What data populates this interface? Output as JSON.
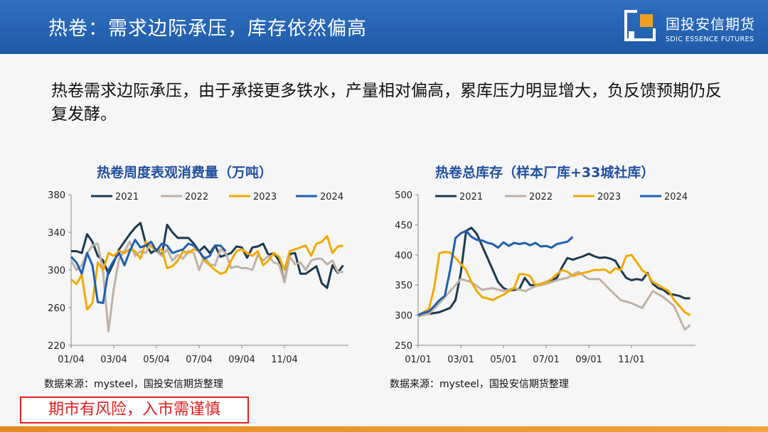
{
  "header": {
    "title": "热卷：需求边际承压，库存依然偏高",
    "logo_cn": "国投安信期货",
    "logo_en": "SDIC ESSENCE FUTURES",
    "bar_color": "#2060b0"
  },
  "body_text": "热卷需求边际承压，由于承接更多铁水，产量相对偏高，累库压力明显增大，负反馈预期仍反复发酵。",
  "risk_notice": "期市有风险，入市需谨慎",
  "chart_data": [
    {
      "type": "line",
      "title": "热卷周度表观消费量（万吨）",
      "source": "数据来源：mysteel，国投安信期货整理",
      "xlabel": "",
      "ylabel": "",
      "x_ticks": [
        "01/04",
        "03/04",
        "05/04",
        "07/04",
        "09/04",
        "11/04"
      ],
      "ylim": [
        220,
        380
      ],
      "y_ticks": [
        220,
        260,
        300,
        340,
        380
      ],
      "xlim": [
        0,
        52
      ],
      "grid": false,
      "legend": "top",
      "series": [
        {
          "name": "2021",
          "color": "#1b3a4f",
          "x": [
            0,
            1,
            2,
            3,
            4,
            5,
            6,
            7,
            8,
            9,
            10,
            11,
            12,
            13,
            14,
            15,
            16,
            17,
            18,
            19,
            20,
            21,
            22,
            23,
            24,
            25,
            26,
            27,
            28,
            29,
            30,
            31,
            32,
            33,
            34,
            35,
            36,
            37,
            38,
            39,
            40,
            41,
            42,
            43,
            44,
            45,
            46,
            47,
            48,
            49,
            50,
            51
          ],
          "values": [
            320,
            320,
            318,
            338,
            330,
            315,
            310,
            296,
            308,
            322,
            330,
            338,
            345,
            350,
            328,
            318,
            322,
            315,
            348,
            340,
            334,
            334,
            334,
            328,
            320,
            325,
            318,
            326,
            314,
            316,
            318,
            325,
            324,
            313,
            324,
            325,
            328,
            316,
            318,
            310,
            287,
            317,
            318,
            296,
            296,
            300,
            304,
            286,
            281,
            305,
            297,
            305
          ]
        },
        {
          "name": "2022",
          "color": "#bfb2a5",
          "x": [
            0,
            1,
            2,
            3,
            4,
            5,
            6,
            7,
            8,
            9,
            10,
            11,
            12,
            13,
            14,
            15,
            16,
            17,
            18,
            19,
            20,
            21,
            22,
            23,
            24,
            25,
            26,
            27,
            28,
            29,
            30,
            31,
            32,
            33,
            34,
            35,
            36,
            37,
            38,
            39,
            40,
            41,
            42,
            43,
            44,
            45,
            46,
            47,
            48,
            49,
            50,
            51
          ],
          "values": [
            310,
            300,
            305,
            318,
            326,
            328,
            298,
            235,
            280,
            312,
            320,
            330,
            315,
            320,
            318,
            330,
            320,
            315,
            322,
            310,
            316,
            312,
            320,
            318,
            300,
            314,
            306,
            305,
            322,
            318,
            302,
            304,
            302,
            302,
            300,
            316,
            310,
            315,
            308,
            306,
            287,
            314,
            306,
            308,
            300,
            310,
            312,
            312,
            306,
            310,
            298,
            298
          ]
        },
        {
          "name": "2023",
          "color": "#f2a900",
          "x": [
            0,
            1,
            2,
            3,
            4,
            5,
            6,
            7,
            8,
            9,
            10,
            11,
            12,
            13,
            14,
            15,
            16,
            17,
            18,
            19,
            20,
            21,
            22,
            23,
            24,
            25,
            26,
            27,
            28,
            29,
            30,
            31,
            32,
            33,
            34,
            35,
            36,
            37,
            38,
            39,
            40,
            41,
            42,
            43,
            44,
            45,
            46,
            47,
            48,
            49,
            50,
            51
          ],
          "values": [
            290,
            285,
            295,
            258,
            265,
            308,
            300,
            318,
            315,
            320,
            318,
            322,
            320,
            312,
            330,
            325,
            320,
            322,
            302,
            304,
            310,
            320,
            318,
            322,
            320,
            310,
            305,
            300,
            296,
            298,
            310,
            320,
            322,
            318,
            315,
            320,
            305,
            310,
            318,
            314,
            300,
            320,
            322,
            324,
            326,
            315,
            328,
            330,
            336,
            318,
            325,
            326
          ]
        },
        {
          "name": "2024",
          "color": "#1f5fb0",
          "x": [
            0,
            1,
            2,
            3,
            4,
            5,
            6,
            7,
            8,
            9,
            10,
            11,
            12,
            13,
            14,
            15,
            16,
            17,
            18,
            19,
            20,
            21,
            22,
            23,
            24,
            25,
            26,
            27,
            28,
            29
          ],
          "values": [
            314,
            308,
            296,
            318,
            305,
            266,
            265,
            300,
            310,
            318,
            305,
            320,
            332,
            324,
            326,
            330,
            320,
            328,
            326,
            318,
            320,
            322,
            328,
            326,
            320,
            312,
            315,
            326,
            326,
            320
          ]
        }
      ]
    },
    {
      "type": "line",
      "title": "热卷总库存（样本厂库+33城社库）",
      "source": "数据来源：mysteel，国投安信期货整理",
      "xlabel": "",
      "ylabel": "",
      "x_ticks": [
        "01/01",
        "03/01",
        "05/01",
        "07/01",
        "09/01",
        "11/01"
      ],
      "ylim": [
        250,
        500
      ],
      "y_ticks": [
        250,
        300,
        350,
        400,
        450,
        500
      ],
      "xlim": [
        0,
        52
      ],
      "grid": false,
      "legend": "top",
      "series": [
        {
          "name": "2021",
          "color": "#1b3a4f",
          "x": [
            0,
            2,
            4,
            6,
            7,
            8,
            9,
            10,
            11,
            12,
            13,
            14,
            15,
            16,
            17,
            18,
            19,
            20,
            21,
            22,
            23,
            24,
            25,
            26,
            27,
            28,
            29,
            30,
            31,
            32,
            33,
            34,
            35,
            36,
            37,
            38,
            39,
            40,
            41,
            42,
            43,
            44,
            45,
            46,
            47,
            48,
            49,
            50,
            51
          ],
          "values": [
            300,
            302,
            305,
            312,
            325,
            370,
            440,
            445,
            435,
            415,
            395,
            375,
            355,
            345,
            341,
            342,
            344,
            362,
            350,
            350,
            352,
            355,
            358,
            362,
            380,
            395,
            392,
            395,
            398,
            402,
            398,
            395,
            396,
            394,
            390,
            375,
            362,
            358,
            360,
            358,
            370,
            352,
            345,
            342,
            335,
            334,
            332,
            328,
            328
          ]
        },
        {
          "name": "2022",
          "color": "#bfb2a5",
          "x": [
            0,
            2,
            4,
            6,
            8,
            10,
            12,
            14,
            16,
            18,
            20,
            22,
            24,
            26,
            28,
            30,
            32,
            34,
            36,
            38,
            40,
            42,
            44,
            46,
            48,
            50,
            51
          ],
          "values": [
            298,
            302,
            320,
            340,
            360,
            355,
            342,
            345,
            340,
            345,
            340,
            348,
            352,
            358,
            362,
            372,
            360,
            360,
            342,
            325,
            320,
            312,
            340,
            330,
            315,
            276,
            284
          ]
        },
        {
          "name": "2023",
          "color": "#f2a900",
          "x": [
            0,
            1,
            2,
            3,
            4,
            5,
            6,
            7,
            8,
            9,
            10,
            11,
            12,
            13,
            14,
            15,
            16,
            17,
            18,
            19,
            20,
            21,
            22,
            23,
            24,
            25,
            26,
            27,
            28,
            29,
            30,
            31,
            32,
            33,
            34,
            35,
            36,
            37,
            38,
            39,
            40,
            41,
            42,
            43,
            44,
            45,
            46,
            47,
            48,
            49,
            50,
            51
          ],
          "values": [
            300,
            305,
            310,
            345,
            403,
            405,
            404,
            395,
            385,
            375,
            355,
            340,
            330,
            328,
            325,
            330,
            334,
            340,
            345,
            368,
            368,
            365,
            350,
            352,
            355,
            360,
            368,
            375,
            372,
            365,
            368,
            370,
            372,
            375,
            375,
            376,
            370,
            378,
            375,
            398,
            400,
            388,
            375,
            368,
            355,
            350,
            345,
            340,
            325,
            315,
            305,
            300
          ]
        },
        {
          "name": "2024",
          "color": "#1f5fb0",
          "x": [
            0,
            1,
            2,
            3,
            4,
            5,
            6,
            7,
            8,
            9,
            10,
            11,
            12,
            13,
            14,
            15,
            16,
            17,
            18,
            19,
            20,
            21,
            22,
            23,
            24,
            25,
            26,
            27,
            28,
            29
          ],
          "values": [
            300,
            304,
            306,
            315,
            325,
            332,
            375,
            428,
            436,
            440,
            430,
            425,
            424,
            420,
            418,
            412,
            421,
            415,
            420,
            418,
            420,
            416,
            420,
            414,
            415,
            412,
            418,
            420,
            422,
            430
          ]
        }
      ]
    }
  ]
}
